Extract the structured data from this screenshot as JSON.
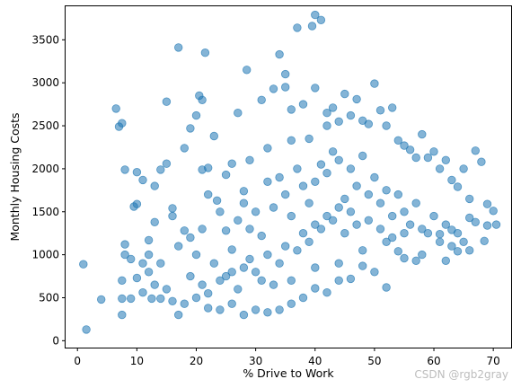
{
  "chart_data": {
    "type": "scatter",
    "title": "",
    "xlabel": "% Drive to Work",
    "ylabel": "Monthly Housing Costs",
    "xlim": [
      -2,
      73
    ],
    "ylim": [
      -80,
      3890
    ],
    "xticks": [
      0,
      10,
      20,
      30,
      40,
      50,
      60,
      70
    ],
    "yticks": [
      0,
      500,
      1000,
      1500,
      2000,
      2500,
      3000,
      3500
    ],
    "grid": false,
    "legend": "none",
    "series": [
      {
        "color": "#1f77b4",
        "alpha": 0.55,
        "note_points": "representative sample of the dense point cloud",
        "points": [
          [
            1,
            890
          ],
          [
            1.5,
            130
          ],
          [
            4,
            480
          ],
          [
            6.5,
            2700
          ],
          [
            7,
            2490
          ],
          [
            7.5,
            2530
          ],
          [
            8,
            1990
          ],
          [
            8,
            1120
          ],
          [
            7.5,
            700
          ],
          [
            7.5,
            490
          ],
          [
            7.5,
            300
          ],
          [
            9,
            490
          ],
          [
            9.5,
            1560
          ],
          [
            10,
            1590
          ],
          [
            10,
            1960
          ],
          [
            11,
            1870
          ],
          [
            12,
            1170
          ],
          [
            12.5,
            490
          ],
          [
            13,
            1800
          ],
          [
            13,
            1380
          ],
          [
            14,
            1990
          ],
          [
            15,
            2060
          ],
          [
            15,
            2780
          ],
          [
            16,
            1540
          ],
          [
            17,
            3410
          ],
          [
            18,
            2240
          ],
          [
            19,
            2470
          ],
          [
            20,
            2620
          ],
          [
            20.5,
            2850
          ],
          [
            21,
            2800
          ],
          [
            21,
            1990
          ],
          [
            21.5,
            3350
          ],
          [
            22,
            2010
          ],
          [
            23,
            2380
          ],
          [
            23.5,
            1630
          ],
          [
            25,
            1930
          ],
          [
            26,
            2060
          ],
          [
            27,
            2650
          ],
          [
            28,
            1740
          ],
          [
            28.5,
            3150
          ],
          [
            29,
            2100
          ],
          [
            31,
            2800
          ],
          [
            32,
            2240
          ],
          [
            33,
            2930
          ],
          [
            34,
            3330
          ],
          [
            35,
            3100
          ],
          [
            35,
            2950
          ],
          [
            36,
            2330
          ],
          [
            36,
            2690
          ],
          [
            37,
            3640
          ],
          [
            38,
            2750
          ],
          [
            39,
            2350
          ],
          [
            39.5,
            3660
          ],
          [
            40,
            3790
          ],
          [
            40,
            2940
          ],
          [
            41,
            3730
          ],
          [
            42,
            2500
          ],
          [
            42,
            2650
          ],
          [
            43,
            2710
          ],
          [
            44,
            2550
          ],
          [
            45,
            2870
          ],
          [
            46,
            2620
          ],
          [
            47,
            2810
          ],
          [
            48,
            2560
          ],
          [
            49,
            2520
          ],
          [
            50,
            2990
          ],
          [
            51,
            2680
          ],
          [
            52,
            2500
          ],
          [
            53,
            2710
          ],
          [
            54,
            2330
          ],
          [
            55,
            2270
          ],
          [
            56,
            2220
          ],
          [
            57,
            2130
          ],
          [
            58,
            2400
          ],
          [
            59,
            2130
          ],
          [
            60,
            2200
          ],
          [
            61,
            2000
          ],
          [
            62,
            2100
          ],
          [
            63,
            1870
          ],
          [
            64,
            1790
          ],
          [
            65,
            2000
          ],
          [
            66,
            1650
          ],
          [
            67,
            2210
          ],
          [
            68,
            2080
          ],
          [
            69,
            1590
          ],
          [
            70,
            1510
          ],
          [
            69,
            1340
          ],
          [
            70.5,
            1350
          ],
          [
            68.5,
            1160
          ],
          [
            67,
            1380
          ],
          [
            66,
            1430
          ],
          [
            64,
            1040
          ],
          [
            63,
            1290
          ],
          [
            62,
            930
          ],
          [
            61,
            1240
          ],
          [
            57,
            930
          ],
          [
            55,
            960
          ],
          [
            54,
            1040
          ],
          [
            52,
            620
          ],
          [
            50,
            800
          ],
          [
            48,
            870
          ],
          [
            46,
            720
          ],
          [
            44,
            700
          ],
          [
            42,
            560
          ],
          [
            40,
            610
          ],
          [
            38,
            500
          ],
          [
            36,
            430
          ],
          [
            34,
            360
          ],
          [
            32,
            330
          ],
          [
            30,
            360
          ],
          [
            28,
            300
          ],
          [
            26,
            430
          ],
          [
            24,
            360
          ],
          [
            22,
            380
          ],
          [
            20,
            500
          ],
          [
            18,
            430
          ],
          [
            17,
            300
          ],
          [
            16,
            460
          ],
          [
            15,
            600
          ],
          [
            14,
            490
          ],
          [
            13,
            650
          ],
          [
            12,
            800
          ],
          [
            11,
            560
          ],
          [
            10,
            730
          ],
          [
            11,
            900
          ],
          [
            12,
            1000
          ],
          [
            9,
            950
          ],
          [
            8,
            1000
          ],
          [
            14,
            900
          ],
          [
            16,
            1450
          ],
          [
            18,
            1280
          ],
          [
            17,
            1100
          ],
          [
            19,
            1200
          ],
          [
            20,
            1000
          ],
          [
            21,
            1300
          ],
          [
            22,
            1700
          ],
          [
            24,
            1500
          ],
          [
            25,
            1280
          ],
          [
            26,
            1060
          ],
          [
            27,
            1400
          ],
          [
            28,
            1600
          ],
          [
            29,
            1300
          ],
          [
            30,
            1500
          ],
          [
            31,
            1220
          ],
          [
            32,
            1850
          ],
          [
            33,
            1550
          ],
          [
            34,
            1900
          ],
          [
            35,
            1700
          ],
          [
            36,
            1450
          ],
          [
            37,
            2000
          ],
          [
            38,
            1800
          ],
          [
            39,
            1600
          ],
          [
            40,
            1850
          ],
          [
            41,
            2050
          ],
          [
            42,
            1950
          ],
          [
            43,
            2200
          ],
          [
            44,
            2100
          ],
          [
            45,
            1650
          ],
          [
            46,
            2000
          ],
          [
            47,
            1800
          ],
          [
            48,
            2150
          ],
          [
            49,
            1700
          ],
          [
            50,
            1900
          ],
          [
            51,
            1600
          ],
          [
            52,
            1750
          ],
          [
            53,
            1450
          ],
          [
            54,
            1700
          ],
          [
            55,
            1500
          ],
          [
            56,
            1350
          ],
          [
            57,
            1600
          ],
          [
            58,
            1300
          ],
          [
            59,
            1250
          ],
          [
            60,
            1450
          ],
          [
            61,
            1150
          ],
          [
            62,
            1350
          ],
          [
            63,
            1100
          ],
          [
            64,
            1250
          ],
          [
            65,
            1150
          ],
          [
            66,
            1050
          ],
          [
            58,
            1000
          ],
          [
            52,
            1150
          ],
          [
            48,
            1050
          ],
          [
            44,
            900
          ],
          [
            40,
            850
          ],
          [
            36,
            700
          ],
          [
            33,
            650
          ],
          [
            30,
            800
          ],
          [
            27,
            600
          ],
          [
            24,
            700
          ],
          [
            21,
            650
          ],
          [
            19,
            750
          ],
          [
            23,
            900
          ],
          [
            26,
            800
          ],
          [
            29,
            950
          ],
          [
            31,
            700
          ],
          [
            34,
            900
          ],
          [
            37,
            1050
          ],
          [
            39,
            1150
          ],
          [
            41,
            1300
          ],
          [
            43,
            1400
          ],
          [
            45,
            1250
          ],
          [
            47,
            1350
          ],
          [
            49,
            1400
          ],
          [
            51,
            1300
          ],
          [
            53,
            1200
          ],
          [
            55,
            1250
          ],
          [
            46,
            1500
          ],
          [
            44,
            1550
          ],
          [
            42,
            1450
          ],
          [
            40,
            1350
          ],
          [
            38,
            1250
          ],
          [
            35,
            1100
          ],
          [
            32,
            1000
          ],
          [
            28,
            850
          ],
          [
            25,
            750
          ],
          [
            22,
            550
          ]
        ]
      }
    ]
  },
  "watermark": "CSDN @rgb2gray"
}
